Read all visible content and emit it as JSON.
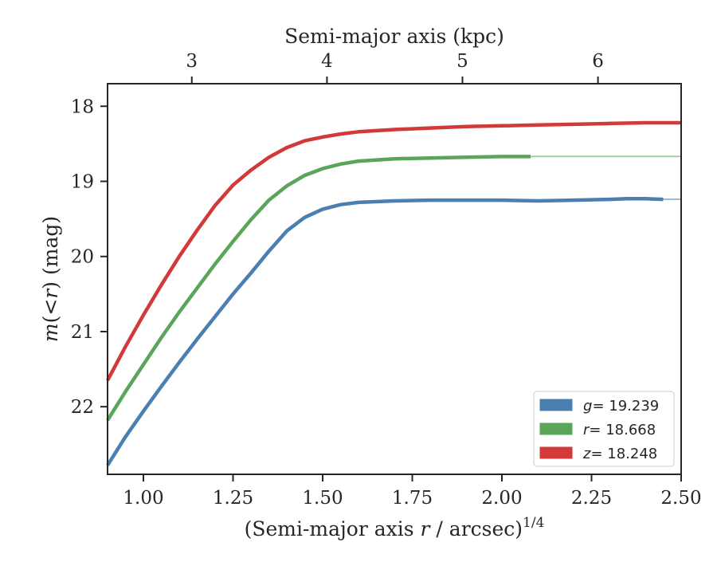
{
  "chart_data": {
    "type": "line",
    "xlabel": "(Semi-major axis r / arcsec)^1/4",
    "xlabel_parts": {
      "prefix": "(Semi-major axis ",
      "var": "r",
      "suffix": " / arcsec)",
      "exponent": "1/4"
    },
    "ylabel": "m(<r) (mag)",
    "ylabel_parts": {
      "func": "m",
      "open": "(",
      "lt": "<",
      "var": "r",
      "close": ")",
      "unit": " (mag)"
    },
    "x2label": "Semi-major axis (kpc)",
    "xlim": [
      0.9,
      2.5
    ],
    "ylim": [
      22.9,
      17.7
    ],
    "y_inverted": true,
    "xticks": [
      1.0,
      1.25,
      1.5,
      1.75,
      2.0,
      2.25,
      2.5
    ],
    "xtick_labels": [
      "1.00",
      "1.25",
      "1.50",
      "1.75",
      "2.00",
      "2.25",
      "2.50"
    ],
    "yticks": [
      18,
      19,
      20,
      21,
      22
    ],
    "ytick_labels": [
      "18",
      "19",
      "20",
      "21",
      "22"
    ],
    "x2ticks_kpc": [
      3,
      4,
      5,
      6
    ],
    "x2tick_x": [
      1.135,
      1.512,
      1.89,
      2.268
    ],
    "x2tick_labels": [
      "3",
      "4",
      "5",
      "6"
    ],
    "grid": false,
    "legend_position": "bottom-right",
    "series": [
      {
        "name": "g",
        "legend_label": "g = 19.239",
        "legend_var": "g",
        "legend_value": "= 19.239",
        "color": "#4a7fb0",
        "asymptote": 19.239,
        "x": [
          0.9,
          0.95,
          1.0,
          1.05,
          1.1,
          1.15,
          1.2,
          1.25,
          1.3,
          1.35,
          1.4,
          1.45,
          1.5,
          1.55,
          1.6,
          1.7,
          1.8,
          1.9,
          2.0,
          2.1,
          2.2,
          2.3,
          2.35,
          2.4,
          2.45
        ],
        "y": [
          22.78,
          22.4,
          22.06,
          21.73,
          21.41,
          21.1,
          20.8,
          20.5,
          20.22,
          19.93,
          19.66,
          19.48,
          19.37,
          19.31,
          19.28,
          19.26,
          19.25,
          19.25,
          19.25,
          19.26,
          19.25,
          19.24,
          19.23,
          19.23,
          19.24
        ]
      },
      {
        "name": "r",
        "legend_label": "r = 18.668",
        "legend_var": "r",
        "legend_value": "= 18.668",
        "color": "#5aa55a",
        "asymptote": 18.668,
        "x": [
          0.9,
          0.95,
          1.0,
          1.05,
          1.1,
          1.15,
          1.2,
          1.25,
          1.3,
          1.35,
          1.4,
          1.45,
          1.5,
          1.55,
          1.6,
          1.7,
          1.8,
          1.9,
          2.0,
          2.08
        ],
        "y": [
          22.18,
          21.8,
          21.44,
          21.08,
          20.74,
          20.42,
          20.1,
          19.8,
          19.51,
          19.25,
          19.06,
          18.92,
          18.83,
          18.77,
          18.73,
          18.7,
          18.69,
          18.68,
          18.67,
          18.67
        ]
      },
      {
        "name": "z",
        "legend_label": "z = 18.248",
        "legend_var": "z",
        "legend_value": "= 18.248",
        "color": "#d23a3a",
        "asymptote": 18.248,
        "x": [
          0.9,
          0.95,
          1.0,
          1.05,
          1.1,
          1.15,
          1.2,
          1.25,
          1.3,
          1.35,
          1.4,
          1.45,
          1.5,
          1.55,
          1.6,
          1.7,
          1.8,
          1.9,
          2.0,
          2.1,
          2.2,
          2.3,
          2.4,
          2.5
        ],
        "y": [
          21.65,
          21.2,
          20.78,
          20.38,
          20.0,
          19.65,
          19.32,
          19.05,
          18.85,
          18.68,
          18.55,
          18.46,
          18.41,
          18.37,
          18.34,
          18.31,
          18.29,
          18.27,
          18.26,
          18.25,
          18.24,
          18.23,
          18.22,
          18.22
        ]
      }
    ]
  }
}
